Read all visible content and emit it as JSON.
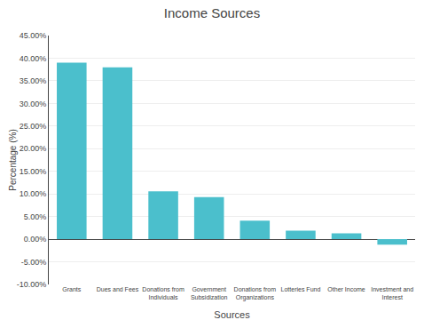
{
  "chart_data": {
    "type": "bar",
    "title": "Income Sources",
    "categories": [
      "Grants",
      "Dues and Fees",
      "Donations from\nIndividuals",
      "Government\nSubsidization",
      "Donations from\nOrganizations",
      "Lotteries Fund",
      "Other Income",
      "Investment and\nInterest"
    ],
    "values": [
      0.39,
      0.38,
      0.106,
      0.093,
      0.041,
      0.019,
      0.013,
      -0.012
    ],
    "color": "#4bbfcc",
    "xlabel": "Sources",
    "ylabel": "Percentage (%)",
    "ylim": [
      -0.1,
      0.45
    ],
    "yticks": [
      {
        "value": -0.1,
        "label": "-10.00%"
      },
      {
        "value": -0.05,
        "label": "-5.00%"
      },
      {
        "value": 0.0,
        "label": "0.00%"
      },
      {
        "value": 0.05,
        "label": "5.00%"
      },
      {
        "value": 0.1,
        "label": "10.00%"
      },
      {
        "value": 0.15,
        "label": "15.00%"
      },
      {
        "value": 0.2,
        "label": "20.00%"
      },
      {
        "value": 0.25,
        "label": "25.00%"
      },
      {
        "value": 0.3,
        "label": "30.00%"
      },
      {
        "value": 0.35,
        "label": "35.00%"
      },
      {
        "value": 0.4,
        "label": "40.00%"
      },
      {
        "value": 0.45,
        "label": "45.00%"
      }
    ],
    "grid": true
  }
}
